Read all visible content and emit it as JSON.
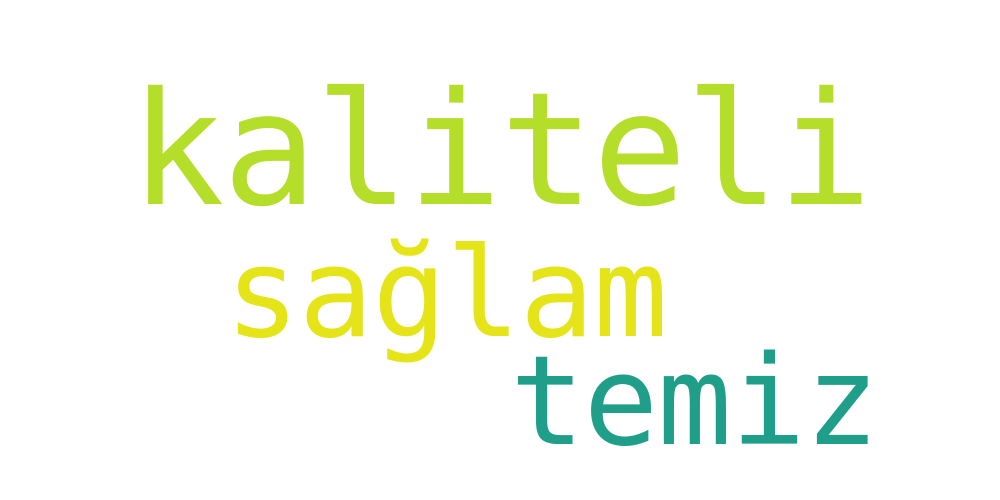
{
  "words": [
    {
      "text": "kaliteli",
      "color": "#b5de2b"
    },
    {
      "text": "sağlam",
      "color": "#e5e419"
    },
    {
      "text": "temiz",
      "color": "#1f9e89"
    }
  ],
  "background": "#ffffff"
}
